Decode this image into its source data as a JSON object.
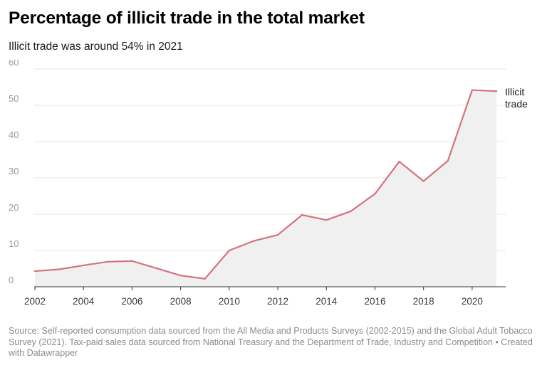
{
  "chart_data": {
    "type": "area",
    "title": "Percentage of illicit trade in the total market",
    "subtitle": "Illicit trade was around 54% in 2021",
    "x": [
      2002,
      2003,
      2004,
      2005,
      2006,
      2007,
      2008,
      2009,
      2010,
      2011,
      2012,
      2013,
      2014,
      2015,
      2016,
      2017,
      2018,
      2019,
      2020,
      2021
    ],
    "series": [
      {
        "name": "Illicit trade",
        "label_lines": [
          "Illicit",
          "trade"
        ],
        "color": "#d6727f",
        "fill": "#f0f0f0",
        "values": [
          4.3,
          4.8,
          5.9,
          6.9,
          7.1,
          5.1,
          3.1,
          2.2,
          10.0,
          12.6,
          14.3,
          19.8,
          18.4,
          20.8,
          25.6,
          34.5,
          29.1,
          34.7,
          54.2,
          53.9
        ]
      }
    ],
    "ylim": [
      0,
      60
    ],
    "yticks": [
      0,
      10,
      20,
      30,
      40,
      50,
      60
    ],
    "xticks": [
      2002,
      2004,
      2006,
      2008,
      2010,
      2012,
      2014,
      2016,
      2018,
      2020
    ],
    "xlabel": "",
    "ylabel": "",
    "grid": true,
    "footer": "Source: Self-reported consumption data sourced from the All Media and Products Surveys (2002-2015) and the Global Adult Tobacco Survey (2021). Tax-paid sales data sourced from National Treasury and the Department of Trade, Industry and Competition • Created with Datawrapper"
  }
}
